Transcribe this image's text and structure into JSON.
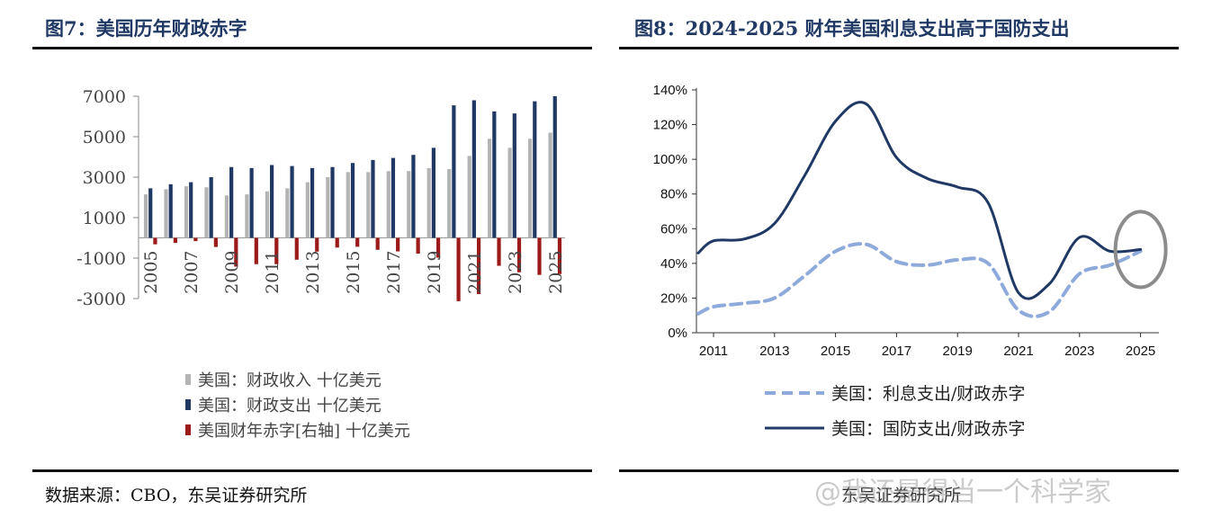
{
  "left": {
    "figure_title": "图7：美国历年财政赤字",
    "source": "数据来源：CBO，东吴证券研究所"
  },
  "right": {
    "figure_title": "图8：2024-2025 财年美国利息支出高于国防支出",
    "source": "东吴证券研究所"
  },
  "watermark": "@我还是得当一个科学家",
  "colors": {
    "revenue": "#b4b4b4",
    "spending": "#1f3864",
    "deficit": "#9b1b1b",
    "interest_line": "#8eaadb",
    "defense_line": "#1f3864",
    "highlight_ellipse": "#8c8c8c"
  },
  "chart_data": [
    {
      "type": "bar",
      "title": "",
      "categories": [
        "2005",
        "2006",
        "2007",
        "2008",
        "2009",
        "2010",
        "2011",
        "2012",
        "2013",
        "2014",
        "2015",
        "2016",
        "2017",
        "2018",
        "2019",
        "2020",
        "2021",
        "2022",
        "2023",
        "2024",
        "2025"
      ],
      "x_tick_labels": [
        "2005",
        "2007",
        "2009",
        "2011",
        "2013",
        "2015",
        "2017",
        "2019",
        "2021",
        "2023",
        "2025"
      ],
      "ylim": [
        -3000,
        7000
      ],
      "y_ticks": [
        7000,
        5000,
        3000,
        1000,
        -1000,
        -3000
      ],
      "y_tick_labels": [
        "7000",
        "5000",
        "3000",
        "1000",
        "-1000",
        "-3000"
      ],
      "legend_position": "bottom-left",
      "series": [
        {
          "name": "美国：财政收入 十亿美元",
          "values": [
            2150,
            2400,
            2550,
            2500,
            2100,
            2150,
            2300,
            2450,
            2750,
            3000,
            3250,
            3250,
            3300,
            3300,
            3450,
            3400,
            4050,
            4900,
            4450,
            4900,
            5200
          ]
        },
        {
          "name": "美国：财政支出 十亿美元",
          "values": [
            2450,
            2650,
            2750,
            3000,
            3500,
            3450,
            3600,
            3550,
            3450,
            3500,
            3700,
            3850,
            3950,
            4100,
            4450,
            6550,
            6800,
            6250,
            6150,
            6750,
            7000
          ]
        },
        {
          "name": "美国财年赤字[右轴] 十亿美元",
          "values": [
            -320,
            -250,
            -160,
            -450,
            -1420,
            -1300,
            -1300,
            -1080,
            -680,
            -480,
            -440,
            -590,
            -670,
            -780,
            -980,
            -3130,
            -2780,
            -1380,
            -1700,
            -1830,
            -1790
          ]
        }
      ]
    },
    {
      "type": "line",
      "title": "",
      "x": [
        2010.5,
        2011,
        2012,
        2013,
        2014,
        2015,
        2016,
        2017,
        2018,
        2019,
        2020,
        2021,
        2022,
        2023,
        2024,
        2025
      ],
      "x_tick_labels": [
        "2011",
        "2013",
        "2015",
        "2017",
        "2019",
        "2021",
        "2023",
        "2025"
      ],
      "ylim": [
        0,
        140
      ],
      "y_ticks": [
        0,
        20,
        40,
        60,
        80,
        100,
        120,
        140
      ],
      "y_tick_labels": [
        "0%",
        "20%",
        "40%",
        "60%",
        "80%",
        "100%",
        "120%",
        "140%"
      ],
      "legend_position": "bottom",
      "series": [
        {
          "name": "美国：利息支出/财政赤字",
          "values": [
            11,
            15,
            17,
            20,
            33,
            47,
            51,
            41,
            39,
            42,
            40,
            13,
            12,
            34,
            39,
            47
          ]
        },
        {
          "name": "美国：国防支出/财政赤字",
          "values": [
            46,
            53,
            54,
            63,
            91,
            122,
            132,
            101,
            89,
            84,
            75,
            23,
            28,
            55,
            47,
            48
          ]
        }
      ],
      "annotations": [
        "gray ellipse highlighting 2024-2025"
      ]
    }
  ]
}
